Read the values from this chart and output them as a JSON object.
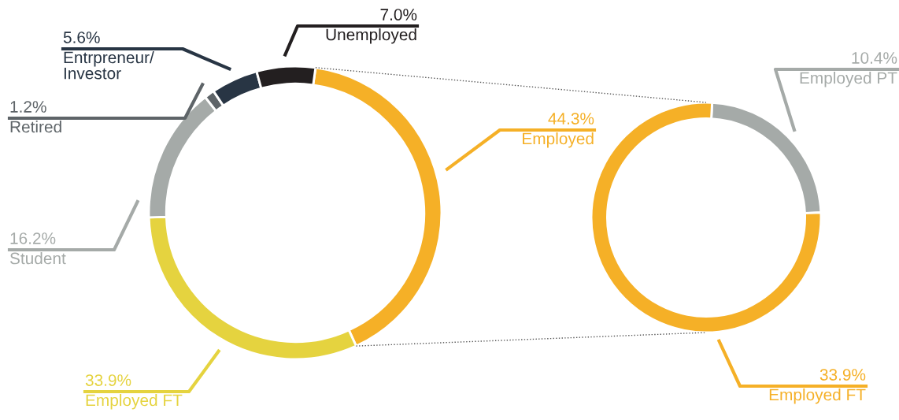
{
  "chart_data": [
    {
      "type": "donut",
      "categories": [
        "Employed",
        "Employed FT",
        "Student",
        "Retired",
        "Entrpreneur/\nInvestor",
        "Unemployed"
      ],
      "values": [
        44.3,
        33.9,
        16.2,
        1.2,
        5.6,
        7.0
      ],
      "value_labels": [
        "44.3%",
        "33.9%",
        "16.2%",
        "1.2%",
        "5.6%",
        "7.0%"
      ],
      "colors": [
        "#f5b027",
        "#e5d33f",
        "#a5aaa8",
        "#5e6468",
        "#283544",
        "#231f20"
      ]
    },
    {
      "type": "donut",
      "categories": [
        "Employed PT",
        "Employed FT"
      ],
      "values": [
        10.4,
        33.9
      ],
      "value_labels": [
        "10.4%",
        "33.9%"
      ],
      "colors": [
        "#a5aaa8",
        "#f5b027"
      ]
    }
  ]
}
